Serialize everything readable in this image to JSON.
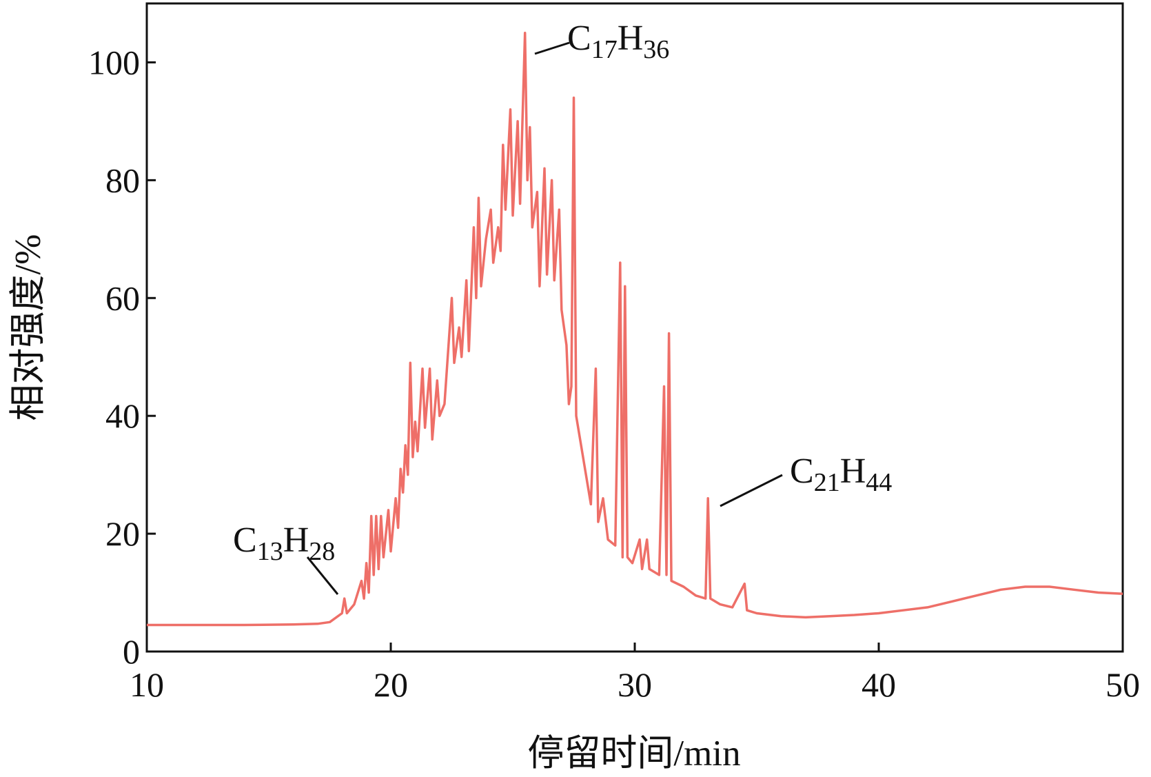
{
  "chart_data": {
    "type": "line",
    "x_label": "停留时间/min",
    "y_label": "相对强度/%",
    "color": "#ee6f68",
    "xlim": [
      10,
      50
    ],
    "xticks": [
      10,
      20,
      30,
      40,
      50
    ],
    "ylim": [
      0,
      110
    ],
    "yticks": [
      0,
      20,
      40,
      60,
      80,
      100
    ],
    "x": [
      10,
      12,
      14,
      16,
      17,
      17.5,
      18,
      18.1,
      18.2,
      18.5,
      18.8,
      18.9,
      19,
      19.1,
      19.2,
      19.3,
      19.4,
      19.5,
      19.6,
      19.7,
      19.9,
      20,
      20.2,
      20.3,
      20.4,
      20.5,
      20.6,
      20.7,
      20.8,
      20.9,
      21,
      21.1,
      21.3,
      21.4,
      21.6,
      21.7,
      21.9,
      22,
      22.2,
      22.5,
      22.6,
      22.8,
      22.9,
      23.1,
      23.2,
      23.4,
      23.5,
      23.6,
      23.7,
      23.9,
      24.1,
      24.2,
      24.4,
      24.5,
      24.6,
      24.7,
      24.9,
      25,
      25.2,
      25.3,
      25.5,
      25.6,
      25.7,
      25.8,
      26,
      26.1,
      26.3,
      26.4,
      26.6,
      26.7,
      26.9,
      27,
      27.2,
      27.3,
      27.4,
      27.5,
      27.6,
      27.8,
      28,
      28.2,
      28.4,
      28.5,
      28.7,
      28.9,
      29.2,
      29.4,
      29.5,
      29.6,
      29.7,
      29.9,
      30.2,
      30.3,
      30.5,
      30.6,
      31,
      31.2,
      31.3,
      31.4,
      31.5,
      32,
      32.5,
      32.9,
      33,
      33.1,
      33.5,
      34,
      34.5,
      34.6,
      35,
      36,
      37,
      38,
      39,
      40,
      41,
      42,
      43,
      44,
      45,
      46,
      47,
      48,
      49,
      50
    ],
    "values": [
      4.5,
      4.5,
      4.5,
      4.6,
      4.7,
      5,
      6.5,
      9,
      6.5,
      8,
      12,
      9,
      15,
      10,
      23,
      13,
      23,
      14,
      23,
      16,
      24,
      17,
      26,
      21,
      31,
      27,
      35,
      30,
      49,
      33,
      39,
      34,
      48,
      38,
      48,
      36,
      46,
      40,
      42,
      60,
      49,
      55,
      50,
      63,
      51,
      72,
      60,
      77,
      62,
      70,
      75,
      66,
      72,
      68,
      86,
      75,
      92,
      74,
      90,
      76,
      105,
      80,
      89,
      72,
      78,
      62,
      82,
      64,
      80,
      63,
      75,
      58,
      52,
      42,
      45,
      94,
      40,
      35,
      30,
      25,
      48,
      22,
      26,
      19,
      18,
      66,
      16,
      62,
      16,
      15,
      19,
      14,
      19,
      14,
      13,
      45,
      13,
      54,
      12,
      11,
      9.5,
      9,
      26,
      9,
      8,
      7.5,
      11.5,
      7,
      6.5,
      6,
      5.8,
      6,
      6.2,
      6.5,
      7,
      7.5,
      8.5,
      9.5,
      10.5,
      11,
      11,
      10.5,
      10,
      9.8
    ],
    "annotations": [
      "C13H28",
      "C17H36",
      "C21H44"
    ]
  }
}
